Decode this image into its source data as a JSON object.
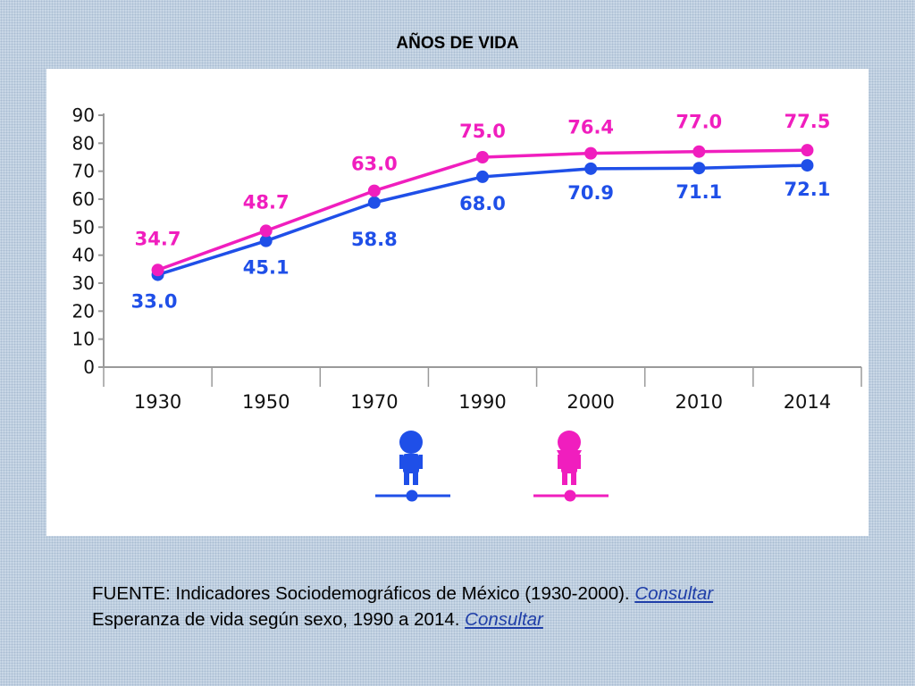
{
  "slide": {
    "title": "AÑOS DE VIDA"
  },
  "chart_data": {
    "type": "line",
    "title": "AÑOS DE VIDA",
    "categories": [
      "1930",
      "1950",
      "1970",
      "1990",
      "2000",
      "2010",
      "2014"
    ],
    "ylim": [
      0,
      90
    ],
    "yticks": [
      0,
      10,
      20,
      30,
      40,
      50,
      60,
      70,
      80,
      90
    ],
    "grid": false,
    "legend": "bottom-center",
    "series": [
      {
        "name": "Hombres",
        "color": "#1f4fe8",
        "values": [
          33.0,
          45.1,
          58.8,
          68.0,
          70.9,
          71.1,
          72.1
        ],
        "labels": [
          "33.0",
          "45.1",
          "58.8",
          "68.0",
          "70.9",
          "71.1",
          "72.1"
        ],
        "legend_icon": "male-figure-icon"
      },
      {
        "name": "Mujeres",
        "color": "#f01ebe",
        "values": [
          34.7,
          48.7,
          63.0,
          75.0,
          76.4,
          77.0,
          77.5
        ],
        "labels": [
          "34.7",
          "48.7",
          "63.0",
          "75.0",
          "76.4",
          "77.0",
          "77.5"
        ],
        "legend_icon": "female-figure-icon"
      }
    ]
  },
  "source": {
    "line1_text": "FUENTE: Indicadores Sociodemográficos de México (1930-2000). ",
    "line1_link": "Consultar",
    "line2_text": "Esperanza de vida según sexo, 1990 a 2014. ",
    "line2_link": "Consultar"
  }
}
